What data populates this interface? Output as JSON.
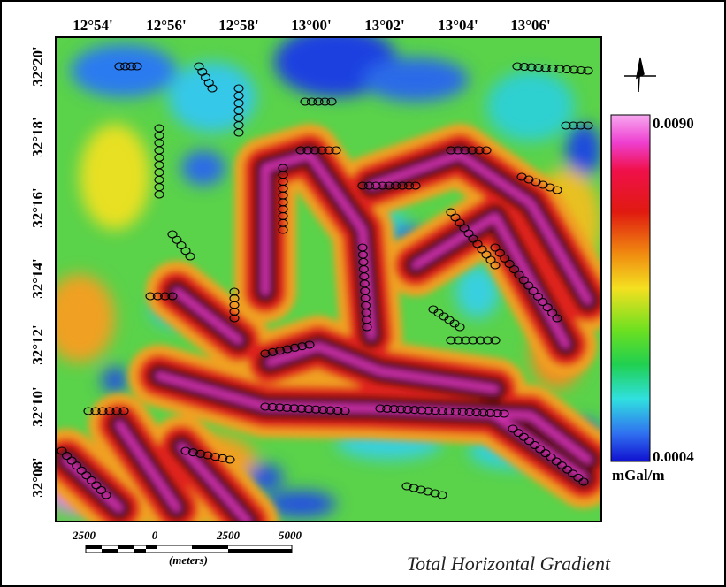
{
  "map": {
    "title": "Total Horizontal Gradient",
    "longitude_labels": [
      "12°54'",
      "12°56'",
      "12°58'",
      "13°00'",
      "13°02'",
      "13°04'",
      "13°06'"
    ],
    "latitude_labels": [
      "32°20'",
      "32°18'",
      "32°16'",
      "32°14'",
      "32°12'",
      "32°10'",
      "32°08'"
    ],
    "legend": {
      "max": "0.0090",
      "min": "0.0004",
      "unit": "mGal/m"
    },
    "scale_bar": {
      "labels": [
        "2500",
        "0",
        "2500",
        "5000"
      ],
      "unit": "(meters)"
    }
  }
}
